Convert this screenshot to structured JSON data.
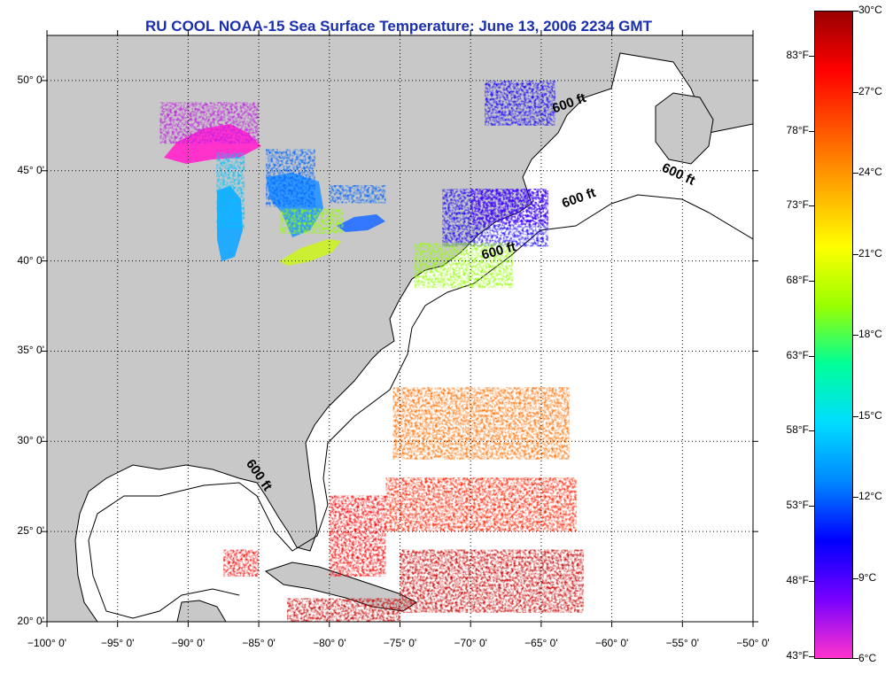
{
  "title": "RU COOL  NOAA-15  Sea Surface Temperature:  June 13, 2006 2234 GMT",
  "map": {
    "lon_range": [
      -100,
      -50
    ],
    "lat_range": [
      20,
      52.5
    ],
    "land_color": "#c8c8c8",
    "ocean_no_data_color": "#ffffff",
    "gridlines": "dotted",
    "lat_ticks": [
      {
        "value": 50,
        "label": "50° 0'"
      },
      {
        "value": 45,
        "label": "45° 0'"
      },
      {
        "value": 40,
        "label": "40° 0'"
      },
      {
        "value": 35,
        "label": "35° 0'"
      },
      {
        "value": 30,
        "label": "30° 0'"
      },
      {
        "value": 25,
        "label": "25° 0'"
      },
      {
        "value": 20,
        "label": "20° 0'"
      }
    ],
    "lon_ticks": [
      {
        "value": -100,
        "label": "−100° 0'"
      },
      {
        "value": -95,
        "label": "−95° 0'"
      },
      {
        "value": -90,
        "label": "−90° 0'"
      },
      {
        "value": -85,
        "label": "−85° 0'"
      },
      {
        "value": -80,
        "label": "−80° 0'"
      },
      {
        "value": -75,
        "label": "−75° 0'"
      },
      {
        "value": -70,
        "label": "−70° 0'"
      },
      {
        "value": -65,
        "label": "−65° 0'"
      },
      {
        "value": -60,
        "label": "−60° 0'"
      },
      {
        "value": -55,
        "label": "−55° 0'"
      },
      {
        "value": -50,
        "label": "−50° 0'"
      }
    ],
    "contour_labels": [
      {
        "text": "600 ft",
        "lon": -64.2,
        "lat": 48.4,
        "angle": -20
      },
      {
        "text": "600 ft",
        "lon": -56.4,
        "lat": 45.2,
        "angle": 25
      },
      {
        "text": "600 ft",
        "lon": -63.5,
        "lat": 43.1,
        "angle": -20
      },
      {
        "text": "600 ft",
        "lon": -69.2,
        "lat": 40.3,
        "angle": -15
      },
      {
        "text": "600 ft",
        "lon": -85.7,
        "lat": 28.9,
        "angle": 55
      }
    ]
  },
  "colorbar": {
    "min_c": 6,
    "max_c": 30,
    "celsius_labels": [
      "30°C",
      "27°C",
      "24°C",
      "21°C",
      "18°C",
      "15°C",
      "12°C",
      "9°C",
      "6°C"
    ],
    "fahrenheit_labels": [
      "83°F",
      "78°F",
      "73°F",
      "68°F",
      "63°F",
      "58°F",
      "53°F",
      "48°F",
      "43°F"
    ],
    "fahrenheit_values": [
      83,
      78,
      73,
      68,
      63,
      58,
      53,
      48,
      43
    ],
    "stops": [
      "#ff33cc",
      "#7700ff",
      "#0000ff",
      "#0088ff",
      "#00ddff",
      "#00ff99",
      "#99ff00",
      "#ffff00",
      "#ffaa00",
      "#ff5500",
      "#ff0000",
      "#990000"
    ]
  },
  "sst_patches": [
    {
      "name": "gulf-of-maine",
      "lon": [
        -72,
        -64.5
      ],
      "lat": [
        40.8,
        44
      ],
      "temp_c": 10
    },
    {
      "name": "mid-atlantic-bight",
      "lon": [
        -74,
        -67
      ],
      "lat": [
        38.5,
        41
      ],
      "temp_c": 19
    },
    {
      "name": "nova-scotia-shelf",
      "lon": [
        -70,
        -64.5
      ],
      "lat": [
        42,
        44
      ],
      "temp_c": 9
    },
    {
      "name": "gulf-of-st-lawrence",
      "lon": [
        -69,
        -64
      ],
      "lat": [
        47.5,
        50
      ],
      "temp_c": 10
    },
    {
      "name": "lake-superior",
      "lon": [
        -92,
        -85
      ],
      "lat": [
        46.5,
        48.8
      ],
      "temp_c": 7
    },
    {
      "name": "lake-michigan",
      "lon": [
        -88,
        -86
      ],
      "lat": [
        41.8,
        46
      ],
      "temp_c": 14
    },
    {
      "name": "lake-huron",
      "lon": [
        -84.5,
        -81
      ],
      "lat": [
        43,
        46.2
      ],
      "temp_c": 12
    },
    {
      "name": "lake-erie",
      "lon": [
        -83.5,
        -79
      ],
      "lat": [
        41.5,
        42.9
      ],
      "temp_c": 19
    },
    {
      "name": "lake-ontario",
      "lon": [
        -80,
        -76
      ],
      "lat": [
        43.2,
        44.2
      ],
      "temp_c": 12
    },
    {
      "name": "subtropical-band-north",
      "lon": [
        -75.5,
        -63
      ],
      "lat": [
        29,
        33
      ],
      "temp_c": 25
    },
    {
      "name": "subtropical-band-middle",
      "lon": [
        -76,
        -62.5
      ],
      "lat": [
        25,
        28
      ],
      "temp_c": 27
    },
    {
      "name": "subtropical-band-south",
      "lon": [
        -75,
        -62
      ],
      "lat": [
        20.5,
        24
      ],
      "temp_c": 29
    },
    {
      "name": "bahamas",
      "lon": [
        -80,
        -76
      ],
      "lat": [
        22.5,
        27
      ],
      "temp_c": 28
    },
    {
      "name": "yucatan-channel",
      "lon": [
        -87.5,
        -85
      ],
      "lat": [
        22.5,
        24
      ],
      "temp_c": 28
    },
    {
      "name": "cuba-south",
      "lon": [
        -83,
        -75
      ],
      "lat": [
        20,
        21.3
      ],
      "temp_c": 29
    }
  ]
}
